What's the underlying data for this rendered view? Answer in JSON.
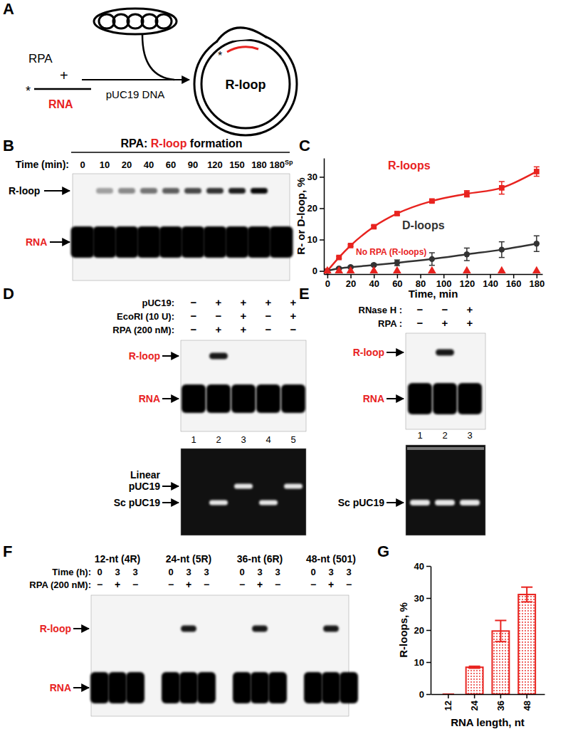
{
  "chart_data": [
    {
      "type": "line",
      "x": [
        0,
        10,
        20,
        40,
        60,
        90,
        120,
        150,
        180
      ],
      "series": [
        {
          "name": "R-loops",
          "color": "#e8231f",
          "marker": "square",
          "line_style": "solid",
          "values": [
            0,
            4.3,
            8.1,
            14.1,
            18.3,
            22.3,
            24.6,
            26.5,
            31.7
          ],
          "errors": [
            0,
            0.3,
            0.3,
            0.4,
            0.5,
            0.4,
            1.0,
            2.0,
            1.5
          ]
        },
        {
          "name": "D-loops",
          "color": "#333333",
          "marker": "circle",
          "line_style": "solid",
          "values": [
            0,
            0.8,
            1.2,
            1.9,
            2.6,
            3.8,
            5.3,
            6.8,
            8.7
          ],
          "errors": [
            0,
            0.3,
            0.3,
            0.4,
            0.9,
            2.0,
            2.0,
            2.5,
            2.5
          ]
        },
        {
          "name": "No RPA (R-loops)",
          "color": "#e8231f",
          "marker": "triangle",
          "line_style": "none",
          "values": [
            0,
            0,
            0,
            0,
            0,
            0,
            0,
            0,
            0
          ]
        }
      ],
      "xlabel": "Time, min",
      "ylabel": "R- or D-loop, %",
      "xlim": [
        -3,
        185
      ],
      "xticks": [
        0,
        20,
        40,
        60,
        80,
        100,
        120,
        140,
        160,
        180
      ],
      "ylim": [
        -1,
        36
      ],
      "yticks": [
        0,
        10,
        20,
        30
      ]
    },
    {
      "type": "bar",
      "categories": [
        "12",
        "24",
        "36",
        "48"
      ],
      "values": [
        0,
        8.4,
        19.7,
        31.1
      ],
      "errors": [
        0,
        0.3,
        3.3,
        2.3
      ],
      "color": "#e8231f",
      "xlabel": "RNA length, nt",
      "ylabel": "R-loops, %",
      "ylim": [
        0,
        40
      ],
      "yticks": [
        0,
        10,
        20,
        30,
        40
      ]
    }
  ],
  "panels": {
    "A": {
      "letter": "A",
      "protein": "RPA",
      "plus": "+",
      "label_star": "*",
      "rna": "RNA",
      "dna": "pUC19 DNA",
      "product": "R-loop"
    },
    "B": {
      "letter": "B",
      "title_parts": [
        {
          "text": "RPA: ",
          "color": "#000000"
        },
        {
          "text": "R-loop",
          "color": "#e8231f"
        },
        {
          "text": " formation",
          "color": "#000000"
        }
      ],
      "row_label": "Time (min):",
      "lanes": [
        {
          "text": "0",
          "r_loop": false
        },
        {
          "text": "10",
          "r_loop": true
        },
        {
          "text": "20",
          "r_loop": true
        },
        {
          "text": "40",
          "r_loop": true
        },
        {
          "text": "60",
          "r_loop": true
        },
        {
          "text": "90",
          "r_loop": true
        },
        {
          "text": "120",
          "r_loop": true
        },
        {
          "text": "150",
          "r_loop": true
        },
        {
          "text": "180",
          "r_loop": true
        },
        {
          "text": "180",
          "sup": "Sp",
          "r_loop": false
        }
      ],
      "bands": {
        "r_loop": "R-loop",
        "rna": "RNA"
      }
    },
    "C": {
      "letter": "C"
    },
    "D": {
      "letter": "D",
      "rows": [
        {
          "label": "pUC19:",
          "values": [
            "−",
            "+",
            "+",
            "+",
            "+"
          ]
        },
        {
          "label": "EcoRI (10 U):",
          "values": [
            "−",
            "−",
            "+",
            "−",
            "+"
          ]
        },
        {
          "label": "RPA (200 nM):",
          "values": [
            "−",
            "+",
            "+",
            "−",
            "−"
          ]
        }
      ],
      "lane_numbers": [
        "1",
        "2",
        "3",
        "4",
        "5"
      ],
      "r_loop": [
        false,
        true,
        false,
        false,
        false
      ],
      "linear": [
        false,
        false,
        true,
        false,
        true
      ],
      "sc": [
        false,
        true,
        false,
        true,
        false
      ],
      "top_labels": {
        "r_loop": "R-loop",
        "rna": "RNA"
      },
      "bottom_labels": {
        "linear": [
          "Linear",
          "pUC19"
        ],
        "sc": "Sc pUC19"
      }
    },
    "E": {
      "letter": "E",
      "rows": [
        {
          "label": "RNase H :",
          "values": [
            "−",
            "−",
            "+"
          ]
        },
        {
          "label": "RPA :",
          "values": [
            "−",
            "+",
            "+"
          ]
        }
      ],
      "lane_numbers": [
        "1",
        "2",
        "3"
      ],
      "r_loop": [
        false,
        true,
        false
      ],
      "sc": [
        true,
        true,
        true
      ],
      "top_labels": {
        "r_loop": "R-loop",
        "rna": "RNA"
      },
      "bottom_labels": {
        "sc": "Sc pUC19"
      }
    },
    "F": {
      "letter": "F",
      "row_labels": [
        "Time (h):",
        "RPA (200 nM):"
      ],
      "groups": [
        {
          "label": "12-nt (4R)",
          "time": [
            "0",
            "3",
            "3"
          ],
          "rpa": [
            "−",
            "+",
            "−"
          ],
          "r_loop": [
            false,
            false,
            false
          ]
        },
        {
          "label": "24-nt (5R)",
          "time": [
            "0",
            "3",
            "3"
          ],
          "rpa": [
            "−",
            "+",
            "−"
          ],
          "r_loop": [
            false,
            true,
            false
          ]
        },
        {
          "label": "36-nt (6R)",
          "time": [
            "0",
            "3",
            "3"
          ],
          "rpa": [
            "−",
            "+",
            "−"
          ],
          "r_loop": [
            false,
            true,
            false
          ]
        },
        {
          "label": "48-nt (501)",
          "time": [
            "0",
            "3",
            "3"
          ],
          "rpa": [
            "−",
            "+",
            "−"
          ],
          "r_loop": [
            false,
            true,
            false
          ]
        }
      ],
      "bands": {
        "r_loop": "R-loop",
        "rna": "RNA"
      }
    },
    "G": {
      "letter": "G"
    }
  }
}
